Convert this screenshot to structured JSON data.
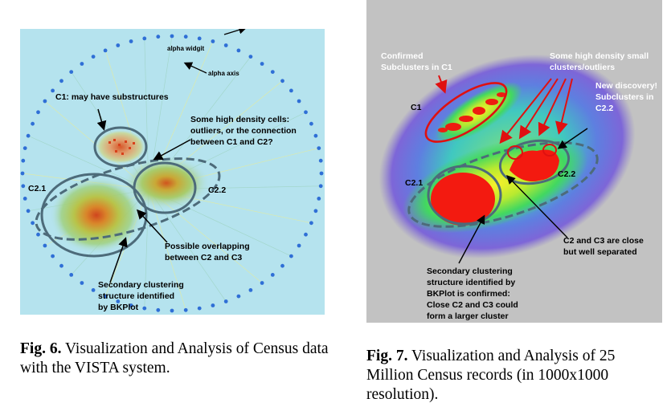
{
  "figure6": {
    "annotations": {
      "alpha_widget": "alpha widgit",
      "alpha_axis": "alpha axis",
      "c1": "C1: may have substructures",
      "high_density_1": "Some high density cells:",
      "high_density_2": "outliers, or the connection",
      "high_density_3": "between C1 and C2?",
      "c21": "C2.1",
      "c22": "C2.2",
      "overlap_1": "Possible overlapping",
      "overlap_2": "between C2 and C3",
      "secondary_1": "Secondary clustering",
      "secondary_2": "structure identified",
      "secondary_3": "by BKPlot"
    },
    "caption": {
      "label": "Fig. 6.",
      "text": " Visualization and Analysis of Census data with the VISTA system."
    },
    "colors": {
      "background": "#b5e3ee",
      "axis_dots": "#2f6fd6",
      "ellipse": "#4d6b7a"
    }
  },
  "figure7": {
    "annotations": {
      "confirmed_1": "Confirmed",
      "confirmed_2": "Subclusters in C1",
      "high_density_1": "Some high density small",
      "high_density_2": "clusters/outliers",
      "discovery_1": "New discovery!",
      "discovery_2": "Subclusters in",
      "discovery_3": "C2.2",
      "c1": "C1",
      "c21": "C2.1",
      "c22": "C2.2",
      "close_1": "C2 and C3 are close",
      "close_2": "but well separated",
      "secondary_1": "Secondary clustering",
      "secondary_2": "structure identified by",
      "secondary_3": "BKPlot is confirmed:",
      "secondary_4": "Close C2 and C3 could",
      "secondary_5": "form a larger cluster"
    },
    "caption": {
      "label": "Fig. 7.",
      "text": " Visualization and Analysis of 25 Million Census records (in 1000x1000 resolution)."
    },
    "colors": {
      "background": "#c2c2c2",
      "annotation_red": "#e01010"
    }
  }
}
